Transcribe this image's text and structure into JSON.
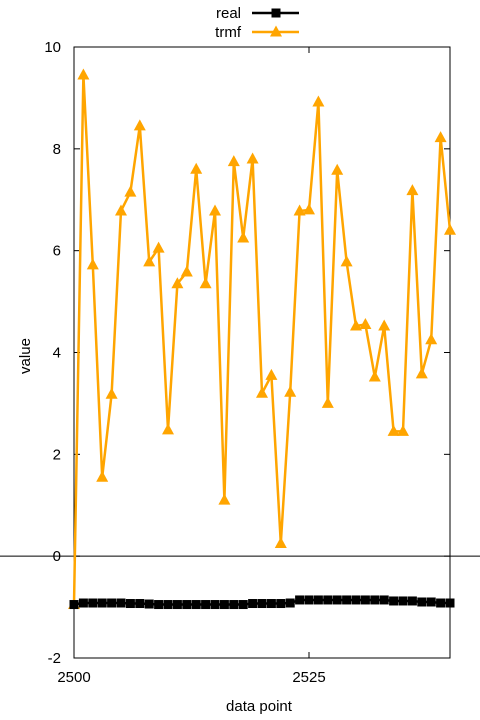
{
  "chart_data": {
    "type": "line",
    "title": "",
    "xlabel": "data point",
    "ylabel": "value",
    "xlim": [
      2500,
      2540
    ],
    "ylim": [
      -2,
      10
    ],
    "xticks": [
      2500,
      2525
    ],
    "yticks": [
      -2,
      0,
      2,
      4,
      6,
      8,
      10
    ],
    "zero_line": true,
    "legend_position": "top-center",
    "x": [
      2500,
      2501,
      2502,
      2503,
      2504,
      2505,
      2506,
      2507,
      2508,
      2509,
      2510,
      2511,
      2512,
      2513,
      2514,
      2515,
      2516,
      2517,
      2518,
      2519,
      2520,
      2521,
      2522,
      2523,
      2524,
      2525,
      2526,
      2527,
      2528,
      2529,
      2530,
      2531,
      2532,
      2533,
      2534,
      2535,
      2536,
      2537,
      2538,
      2539,
      2540
    ],
    "series": [
      {
        "name": "real",
        "color": "#000000",
        "marker": "square",
        "values": [
          -0.95,
          -0.92,
          -0.92,
          -0.92,
          -0.92,
          -0.92,
          -0.93,
          -0.93,
          -0.94,
          -0.95,
          -0.95,
          -0.95,
          -0.95,
          -0.95,
          -0.95,
          -0.95,
          -0.95,
          -0.95,
          -0.95,
          -0.93,
          -0.93,
          -0.93,
          -0.93,
          -0.92,
          -0.86,
          -0.86,
          -0.86,
          -0.86,
          -0.86,
          -0.86,
          -0.86,
          -0.86,
          -0.86,
          -0.86,
          -0.88,
          -0.88,
          -0.88,
          -0.9,
          -0.9,
          -0.92,
          -0.92
        ]
      },
      {
        "name": "trmf",
        "color": "#ffa500",
        "marker": "triangle",
        "values": [
          -0.95,
          9.45,
          5.72,
          1.55,
          3.18,
          6.78,
          7.15,
          8.45,
          5.78,
          6.05,
          2.48,
          5.35,
          5.58,
          7.6,
          5.35,
          6.78,
          1.1,
          7.75,
          6.25,
          7.8,
          3.2,
          3.55,
          0.25,
          3.22,
          6.78,
          6.8,
          8.92,
          3.0,
          7.58,
          5.78,
          4.52,
          4.55,
          3.52,
          4.52,
          2.45,
          2.45,
          7.18,
          3.58,
          4.25,
          8.22,
          6.4
        ]
      }
    ]
  }
}
